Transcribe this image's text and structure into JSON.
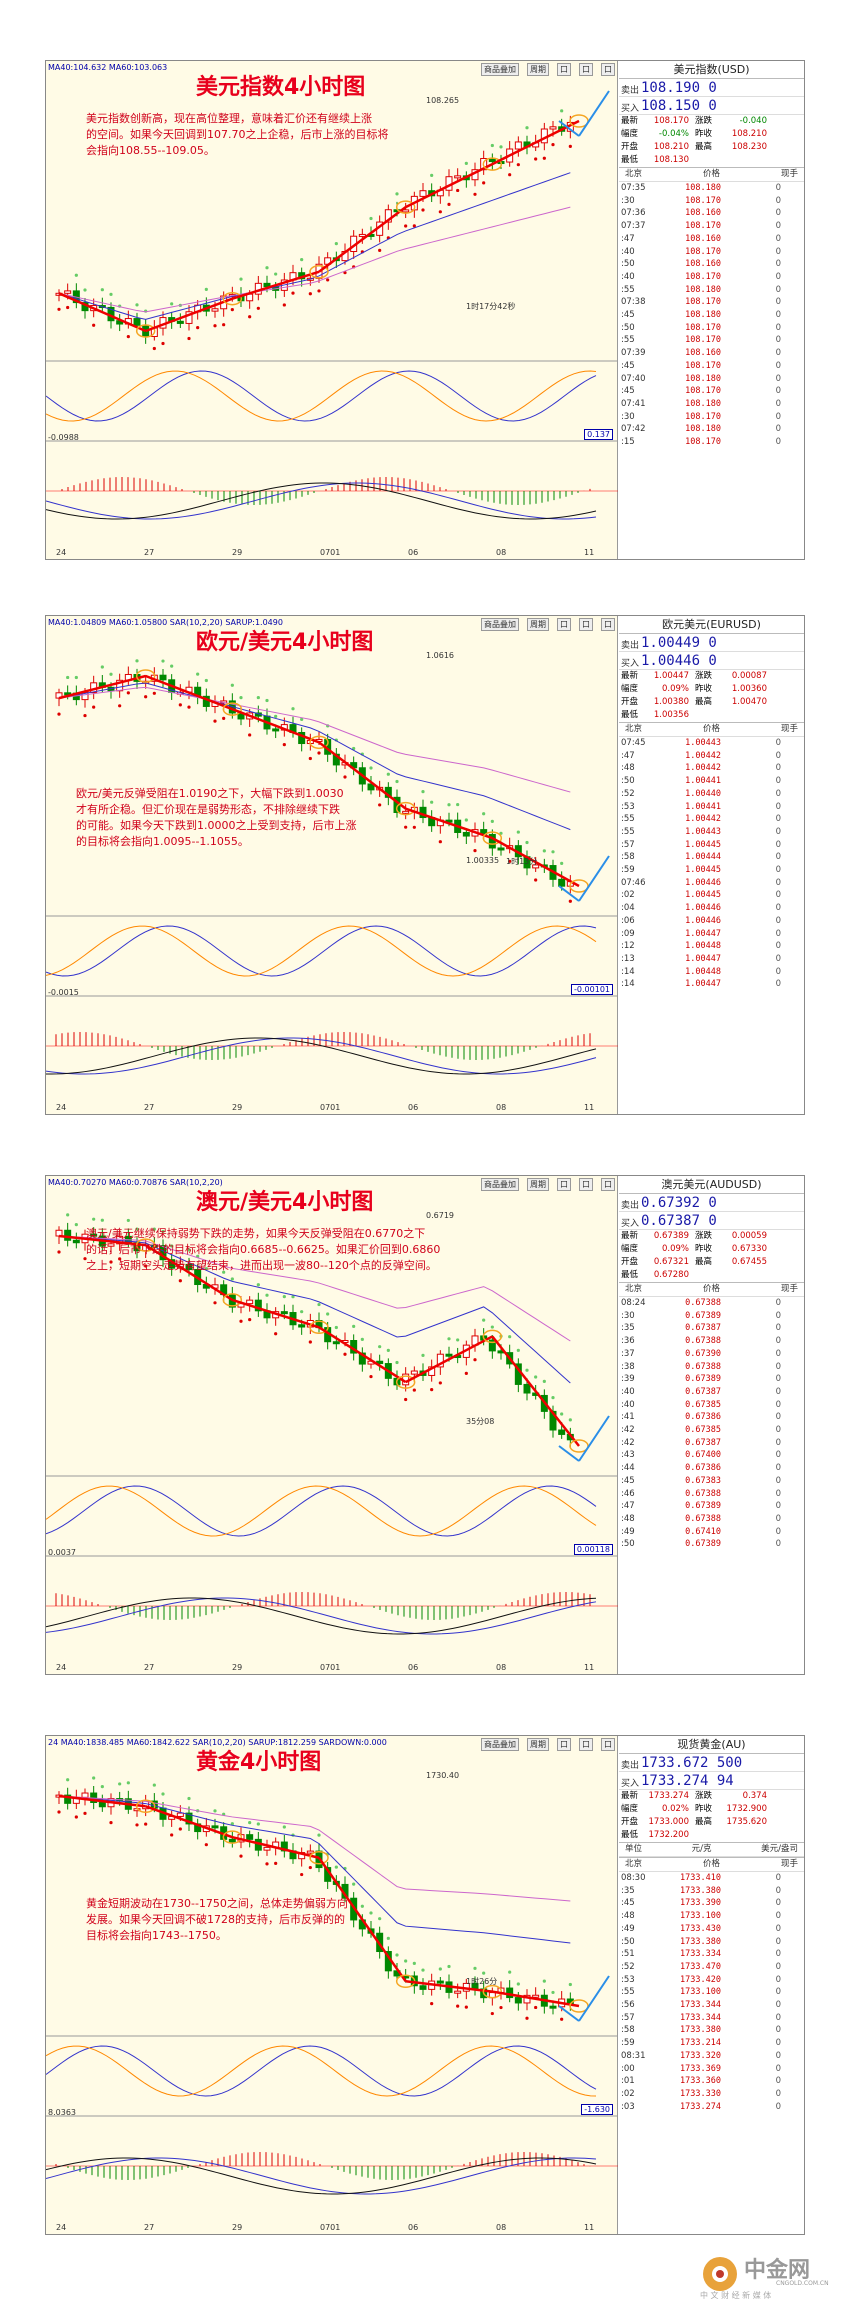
{
  "panels": [
    {
      "title": "美元指数4小时图",
      "indicator": "MA40:104.632  MA60:103.063",
      "toolbar": [
        "商品叠加",
        "周期",
        "口",
        "口",
        "口"
      ],
      "note_lines": [
        "美元指数创新高，现在高位整理，意味着汇价还有继续上涨",
        "的空间。如果今天回调到107.70之上企稳，后市上涨的目标将",
        "会指向108.55--109.05。"
      ],
      "price_marks": [
        "108.265",
        "1时17分42秒"
      ],
      "osc_label": "-0.0988",
      "box_value": "0.137",
      "xlabels": [
        "24",
        "27",
        "29",
        "0701",
        "06",
        "08",
        "11"
      ],
      "quote": {
        "name": "美元指数(USD)",
        "sell_label": "卖出",
        "sell": "108.190 0",
        "buy_label": "买入",
        "buy": "108.150 0",
        "stats": [
          [
            "最新",
            "108.170",
            "涨跌",
            "-0.040"
          ],
          [
            "幅度",
            "-0.04%",
            "昨收",
            "108.210"
          ],
          [
            "开盘",
            "108.210",
            "最高",
            "108.230"
          ],
          [
            "最低",
            "108.130",
            "",
            ""
          ]
        ],
        "tick_head": [
          "北京",
          "价格",
          "现手"
        ],
        "ticks": [
          [
            "07:35",
            "108.180",
            "0"
          ],
          [
            ":30",
            "108.170",
            "0"
          ],
          [
            "07:36",
            "108.160",
            "0"
          ],
          [
            "07:37",
            "108.170",
            "0"
          ],
          [
            ":47",
            "108.160",
            "0"
          ],
          [
            ":40",
            "108.170",
            "0"
          ],
          [
            ":50",
            "108.160",
            "0"
          ],
          [
            ":40",
            "108.170",
            "0"
          ],
          [
            ":55",
            "108.180",
            "0"
          ],
          [
            "07:38",
            "108.170",
            "0"
          ],
          [
            ":45",
            "108.180",
            "0"
          ],
          [
            ":50",
            "108.170",
            "0"
          ],
          [
            ":55",
            "108.170",
            "0"
          ],
          [
            "07:39",
            "108.160",
            "0"
          ],
          [
            ":45",
            "108.170",
            "0"
          ],
          [
            "07:40",
            "108.180",
            "0"
          ],
          [
            ":45",
            "108.170",
            "0"
          ],
          [
            "07:41",
            "108.180",
            "0"
          ],
          [
            ":30",
            "108.170",
            "0"
          ],
          [
            "07:42",
            "108.180",
            "0"
          ],
          [
            ":15",
            "108.170",
            "0"
          ]
        ]
      }
    },
    {
      "title": "欧元/美元4小时图",
      "indicator": "MA40:1.04809  MA60:1.05800  SAR(10,2,20)  SARUP:1.0490",
      "toolbar": [
        "商品叠加",
        "周期",
        "口",
        "口",
        "口"
      ],
      "note_lines": [
        "欧元/美元反弹受阻在1.0190之下，大幅下跌到1.0030",
        "才有所企稳。但汇价现在是弱势形态，不排除继续下跌",
        "的可能。如果今天下跌到1.0000之上受到支持，后市上涨",
        "的目标将会指向1.0095--1.1055。"
      ],
      "price_marks": [
        "1.0616",
        "1.00335",
        "1时13分"
      ],
      "osc_label": "-0.0015",
      "box_value": "-0.00101",
      "xlabels": [
        "24",
        "27",
        "29",
        "0701",
        "06",
        "08",
        "11"
      ],
      "quote": {
        "name": "欧元美元(EURUSD)",
        "sell_label": "卖出",
        "sell": "1.00449 0",
        "buy_label": "买入",
        "buy": "1.00446 0",
        "stats": [
          [
            "最新",
            "1.00447",
            "涨跌",
            "0.00087"
          ],
          [
            "幅度",
            "0.09%",
            "昨收",
            "1.00360"
          ],
          [
            "开盘",
            "1.00380",
            "最高",
            "1.00470"
          ],
          [
            "最低",
            "1.00356",
            "",
            ""
          ]
        ],
        "tick_head": [
          "北京",
          "价格",
          "现手"
        ],
        "ticks": [
          [
            "07:45",
            "1.00443",
            "0"
          ],
          [
            ":47",
            "1.00442",
            "0"
          ],
          [
            ":48",
            "1.00442",
            "0"
          ],
          [
            ":50",
            "1.00441",
            "0"
          ],
          [
            ":52",
            "1.00440",
            "0"
          ],
          [
            ":53",
            "1.00441",
            "0"
          ],
          [
            ":55",
            "1.00442",
            "0"
          ],
          [
            ":55",
            "1.00443",
            "0"
          ],
          [
            ":57",
            "1.00445",
            "0"
          ],
          [
            ":58",
            "1.00444",
            "0"
          ],
          [
            ":59",
            "1.00445",
            "0"
          ],
          [
            "07:46",
            "1.00446",
            "0"
          ],
          [
            ":02",
            "1.00445",
            "0"
          ],
          [
            ":04",
            "1.00446",
            "0"
          ],
          [
            ":06",
            "1.00446",
            "0"
          ],
          [
            ":09",
            "1.00447",
            "0"
          ],
          [
            ":12",
            "1.00448",
            "0"
          ],
          [
            ":13",
            "1.00447",
            "0"
          ],
          [
            ":14",
            "1.00448",
            "0"
          ],
          [
            ":14",
            "1.00447",
            "0"
          ]
        ]
      }
    },
    {
      "title": "澳元/美元4小时图",
      "indicator": "MA40:0.70270  MA60:0.70876  SAR(10,2,20)",
      "toolbar": [
        "商品叠加",
        "周期",
        "口",
        "口",
        "口"
      ],
      "note_lines": [
        "澳元/美元继续保持弱势下跌的走势，如果今天反弹受阻在0.6770之下",
        "的话，后市下跌的目标将会指向0.6685--0.6625。如果汇价回到0.6860",
        "之上，短期空头走势有望结束，进而出现一波80--120个点的反弹空间。"
      ],
      "price_marks": [
        "0.6719",
        "35分08"
      ],
      "osc_label": "0.0037",
      "box_value": "0.00118",
      "xlabels": [
        "24",
        "27",
        "29",
        "0701",
        "06",
        "08",
        "11"
      ],
      "quote": {
        "name": "澳元美元(AUDUSD)",
        "sell_label": "卖出",
        "sell": "0.67392 0",
        "buy_label": "买入",
        "buy": "0.67387 0",
        "stats": [
          [
            "最新",
            "0.67389",
            "涨跌",
            "0.00059"
          ],
          [
            "幅度",
            "0.09%",
            "昨收",
            "0.67330"
          ],
          [
            "开盘",
            "0.67321",
            "最高",
            "0.67455"
          ],
          [
            "最低",
            "0.67280",
            "",
            ""
          ]
        ],
        "tick_head": [
          "北京",
          "价格",
          "现手"
        ],
        "ticks": [
          [
            "08:24",
            "0.67388",
            "0"
          ],
          [
            ":30",
            "0.67389",
            "0"
          ],
          [
            ":35",
            "0.67387",
            "0"
          ],
          [
            ":36",
            "0.67388",
            "0"
          ],
          [
            ":37",
            "0.67390",
            "0"
          ],
          [
            ":38",
            "0.67388",
            "0"
          ],
          [
            ":39",
            "0.67389",
            "0"
          ],
          [
            ":40",
            "0.67387",
            "0"
          ],
          [
            ":40",
            "0.67385",
            "0"
          ],
          [
            ":41",
            "0.67386",
            "0"
          ],
          [
            ":42",
            "0.67385",
            "0"
          ],
          [
            ":42",
            "0.67387",
            "0"
          ],
          [
            ":43",
            "0.67400",
            "0"
          ],
          [
            ":44",
            "0.67386",
            "0"
          ],
          [
            ":45",
            "0.67383",
            "0"
          ],
          [
            ":46",
            "0.67388",
            "0"
          ],
          [
            ":47",
            "0.67389",
            "0"
          ],
          [
            ":48",
            "0.67388",
            "0"
          ],
          [
            ":49",
            "0.67410",
            "0"
          ],
          [
            ":50",
            "0.67389",
            "0"
          ]
        ]
      }
    },
    {
      "title": "黄金4小时图",
      "indicator": "24  MA40:1838.485  MA60:1842.622  SAR(10,2,20)  SARUP:1812.259  SARDOWN:0.000",
      "toolbar": [
        "商品叠加",
        "周期",
        "口",
        "口",
        "口"
      ],
      "note_lines": [
        "黄金短期波动在1730--1750之间，总体走势偏弱方向",
        "发展。如果今天回调不破1728的支持，后市反弹的的",
        "目标将会指向1743--1750。"
      ],
      "price_marks": [
        "1730.40",
        "1时26分"
      ],
      "osc_label": "8.0363",
      "box_value": "-1.630",
      "xlabels": [
        "24",
        "27",
        "29",
        "0701",
        "06",
        "08",
        "11"
      ],
      "quote": {
        "name": "现货黄金(AU)",
        "sell_label": "卖出",
        "sell": "1733.672 500",
        "buy_label": "买入",
        "buy": "1733.274 94",
        "stats": [
          [
            "最新",
            "1733.274",
            "涨跌",
            "0.374"
          ],
          [
            "幅度",
            "0.02%",
            "昨收",
            "1732.900"
          ],
          [
            "开盘",
            "1733.000",
            "最高",
            "1735.620"
          ],
          [
            "最低",
            "1732.200",
            "",
            ""
          ]
        ],
        "unit_row": [
          "单位",
          "元/克",
          "美元/盎司"
        ],
        "tick_head": [
          "北京",
          "价格",
          "现手"
        ],
        "ticks": [
          [
            "08:30",
            "1733.410",
            "0"
          ],
          [
            ":35",
            "1733.380",
            "0"
          ],
          [
            ":45",
            "1733.390",
            "0"
          ],
          [
            ":48",
            "1733.100",
            "0"
          ],
          [
            ":49",
            "1733.430",
            "0"
          ],
          [
            ":50",
            "1733.380",
            "0"
          ],
          [
            ":51",
            "1733.334",
            "0"
          ],
          [
            ":52",
            "1733.470",
            "0"
          ],
          [
            ":53",
            "1733.420",
            "0"
          ],
          [
            ":55",
            "1733.100",
            "0"
          ],
          [
            ":56",
            "1733.344",
            "0"
          ],
          [
            ":57",
            "1733.344",
            "0"
          ],
          [
            ":58",
            "1733.380",
            "0"
          ],
          [
            ":59",
            "1733.214",
            "0"
          ],
          [
            "08:31",
            "1733.320",
            "0"
          ],
          [
            ":00",
            "1733.369",
            "0"
          ],
          [
            ":01",
            "1733.360",
            "0"
          ],
          [
            ":02",
            "1733.330",
            "0"
          ],
          [
            ":03",
            "1733.274",
            "0"
          ]
        ]
      }
    }
  ],
  "logo": {
    "text": "中金网",
    "sub": "CNGOLD.COM.CN",
    "tagline": "中 文 财 经 新 媒 体"
  },
  "chart_data": [
    {
      "type": "line",
      "title": "美元指数4小时图",
      "xlabel": "",
      "ylabel": "",
      "categories": [
        "24",
        "27",
        "29",
        "0701",
        "06",
        "08",
        "11"
      ],
      "series": [
        {
          "values": [
            105.0,
            104.3,
            104.9,
            105.4,
            106.6,
            107.4,
            108.2
          ]
        }
      ]
    },
    {
      "type": "line",
      "title": "欧元/美元4小时图",
      "xlabel": "",
      "ylabel": "",
      "categories": [
        "24",
        "27",
        "29",
        "0701",
        "06",
        "08",
        "11"
      ],
      "series": [
        {
          "values": [
            1.055,
            1.061,
            1.052,
            1.043,
            1.025,
            1.017,
            1.004
          ]
        }
      ]
    },
    {
      "type": "line",
      "title": "澳元/美元4小时图",
      "xlabel": "",
      "ylabel": "",
      "categories": [
        "24",
        "27",
        "29",
        "0701",
        "06",
        "08",
        "11"
      ],
      "series": [
        {
          "values": [
            0.695,
            0.694,
            0.688,
            0.685,
            0.679,
            0.684,
            0.672
          ]
        }
      ]
    },
    {
      "type": "line",
      "title": "黄金4小时图",
      "xlabel": "",
      "ylabel": "",
      "categories": [
        "24",
        "27",
        "29",
        "0701",
        "06",
        "08",
        "11"
      ],
      "series": [
        {
          "values": [
            1835,
            1830,
            1815,
            1805,
            1745,
            1740,
            1733
          ]
        }
      ]
    }
  ]
}
